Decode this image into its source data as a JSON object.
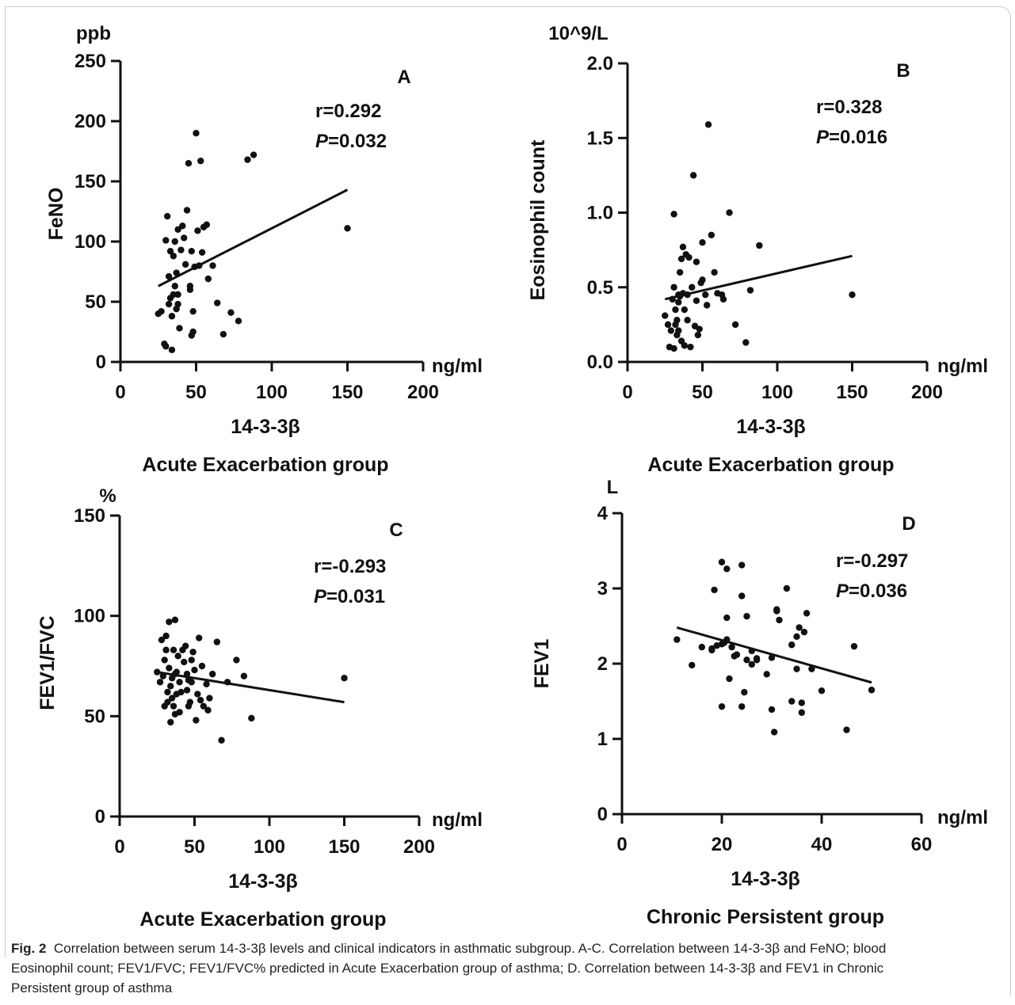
{
  "figure": {
    "caption_label": "Fig. 2",
    "caption_lines": [
      "Correlation between serum 14-3-3β levels and clinical indicators in asthmatic subgroup. A-C. Correlation between 14-3-3β and FeNO; blood",
      "Eosinophil count; FEV1/FVC; FEV1/FVC% predicted in Acute Exacerbation group of asthma; D. Correlation between 14-3-3β and FEV1 in Chronic",
      "Persistent group of asthma"
    ]
  },
  "chart_data": [
    {
      "type": "scatter",
      "panel": "A",
      "ylabel": "FeNO",
      "yunit": "ppb",
      "xunit": "ng/ml",
      "xlabel": "14-3-3β",
      "group": "Acute Exacerbation group",
      "xlim": [
        0,
        200
      ],
      "ylim": [
        0,
        250
      ],
      "xticks": [
        0,
        50,
        100,
        150,
        200
      ],
      "yticks": [
        0,
        50,
        100,
        150,
        200,
        250
      ],
      "stat_r": "r=0.292",
      "stat_p_letter": "P",
      "stat_p_value": "=0.032",
      "regression": {
        "x": [
          25,
          150
        ],
        "y": [
          63,
          143
        ]
      },
      "points": [
        [
          25,
          40
        ],
        [
          27,
          42
        ],
        [
          29,
          15
        ],
        [
          30,
          13
        ],
        [
          31,
          121
        ],
        [
          30,
          101
        ],
        [
          32,
          48
        ],
        [
          32,
          71
        ],
        [
          33,
          92
        ],
        [
          33,
          53
        ],
        [
          34,
          38
        ],
        [
          34,
          10
        ],
        [
          35,
          88
        ],
        [
          35,
          56
        ],
        [
          36,
          100
        ],
        [
          36,
          63
        ],
        [
          37,
          44
        ],
        [
          37,
          74
        ],
        [
          38,
          48
        ],
        [
          38,
          110
        ],
        [
          38,
          56
        ],
        [
          39,
          28
        ],
        [
          40,
          93
        ],
        [
          41,
          113
        ],
        [
          42,
          103
        ],
        [
          43,
          81
        ],
        [
          44,
          126
        ],
        [
          45,
          165
        ],
        [
          46,
          60
        ],
        [
          46,
          63
        ],
        [
          47,
          92
        ],
        [
          47,
          22
        ],
        [
          48,
          25
        ],
        [
          48,
          42
        ],
        [
          49,
          79
        ],
        [
          50,
          190
        ],
        [
          51,
          109
        ],
        [
          52,
          80
        ],
        [
          53,
          167
        ],
        [
          54,
          91
        ],
        [
          55,
          112
        ],
        [
          57,
          114
        ],
        [
          58,
          69
        ],
        [
          61,
          80
        ],
        [
          64,
          49
        ],
        [
          68,
          23
        ],
        [
          73,
          41
        ],
        [
          78,
          34
        ],
        [
          84,
          168
        ],
        [
          88,
          172
        ],
        [
          150,
          111
        ]
      ]
    },
    {
      "type": "scatter",
      "panel": "B",
      "ylabel": "Eosinophil count",
      "yunit": "10^9/L",
      "xunit": "ng/ml",
      "xlabel": "14-3-3β",
      "group": "Acute Exacerbation group",
      "xlim": [
        0,
        200
      ],
      "ylim": [
        0,
        2.0
      ],
      "xticks": [
        0,
        50,
        100,
        150,
        200
      ],
      "yticks": [
        0.0,
        0.5,
        1.0,
        1.5,
        2.0
      ],
      "stat_r": "r=0.328",
      "stat_p_letter": "P",
      "stat_p_value": "=0.016",
      "regression": {
        "x": [
          25,
          150
        ],
        "y": [
          0.42,
          0.71
        ]
      },
      "points": [
        [
          25,
          0.31
        ],
        [
          27,
          0.25
        ],
        [
          28,
          0.1
        ],
        [
          29,
          0.21
        ],
        [
          30,
          0.42
        ],
        [
          31,
          0.99
        ],
        [
          31,
          0.5
        ],
        [
          31,
          0.09
        ],
        [
          32,
          0.35
        ],
        [
          32,
          0.25
        ],
        [
          33,
          0.18
        ],
        [
          33,
          0.28
        ],
        [
          34,
          0.45
        ],
        [
          34,
          0.4
        ],
        [
          34,
          0.21
        ],
        [
          35,
          0.6
        ],
        [
          35,
          0.44
        ],
        [
          36,
          0.69
        ],
        [
          36,
          0.14
        ],
        [
          37,
          0.77
        ],
        [
          37,
          0.46
        ],
        [
          38,
          0.11
        ],
        [
          38,
          0.35
        ],
        [
          39,
          0.72
        ],
        [
          40,
          0.45
        ],
        [
          40,
          0.28
        ],
        [
          41,
          0.7
        ],
        [
          42,
          0.1
        ],
        [
          43,
          0.5
        ],
        [
          44,
          1.25
        ],
        [
          45,
          0.24
        ],
        [
          46,
          0.67
        ],
        [
          46,
          0.41
        ],
        [
          47,
          0.18
        ],
        [
          48,
          0.22
        ],
        [
          49,
          0.53
        ],
        [
          50,
          0.8
        ],
        [
          50,
          0.55
        ],
        [
          52,
          0.45
        ],
        [
          53,
          0.38
        ],
        [
          54,
          1.59
        ],
        [
          56,
          0.85
        ],
        [
          58,
          0.6
        ],
        [
          60,
          0.46
        ],
        [
          63,
          0.45
        ],
        [
          64,
          0.42
        ],
        [
          68,
          1.0
        ],
        [
          72,
          0.25
        ],
        [
          79,
          0.13
        ],
        [
          82,
          0.48
        ],
        [
          88,
          0.78
        ],
        [
          150,
          0.45
        ]
      ]
    },
    {
      "type": "scatter",
      "panel": "C",
      "ylabel": "FEV1/FVC",
      "yunit": "%",
      "xunit": "ng/ml",
      "xlabel": "14-3-3β",
      "group": "Acute Exacerbation group",
      "xlim": [
        0,
        200
      ],
      "ylim": [
        0,
        150
      ],
      "xticks": [
        0,
        50,
        100,
        150,
        200
      ],
      "yticks": [
        0,
        50,
        100,
        150
      ],
      "stat_r": "r=-0.293",
      "stat_p_letter": "P",
      "stat_p_value": "=0.031",
      "regression": {
        "x": [
          25,
          150
        ],
        "y": [
          72,
          57
        ]
      },
      "points": [
        [
          25,
          72
        ],
        [
          27,
          67
        ],
        [
          28,
          88
        ],
        [
          29,
          70
        ],
        [
          30,
          78
        ],
        [
          30,
          55
        ],
        [
          31,
          90
        ],
        [
          31,
          83
        ],
        [
          32,
          62
        ],
        [
          32,
          57
        ],
        [
          33,
          97
        ],
        [
          33,
          74
        ],
        [
          34,
          47
        ],
        [
          34,
          65
        ],
        [
          35,
          69
        ],
        [
          35,
          59
        ],
        [
          36,
          83
        ],
        [
          36,
          55
        ],
        [
          37,
          98
        ],
        [
          37,
          71
        ],
        [
          37,
          51
        ],
        [
          38,
          61
        ],
        [
          38,
          72
        ],
        [
          39,
          80
        ],
        [
          40,
          67
        ],
        [
          40,
          52
        ],
        [
          41,
          62
        ],
        [
          42,
          83
        ],
        [
          43,
          77
        ],
        [
          44,
          85
        ],
        [
          45,
          71
        ],
        [
          45,
          63
        ],
        [
          46,
          68
        ],
        [
          46,
          55
        ],
        [
          47,
          57
        ],
        [
          48,
          78
        ],
        [
          48,
          67
        ],
        [
          49,
          82
        ],
        [
          50,
          73
        ],
        [
          51,
          48
        ],
        [
          52,
          61
        ],
        [
          53,
          89
        ],
        [
          54,
          58
        ],
        [
          55,
          75
        ],
        [
          56,
          55
        ],
        [
          58,
          66
        ],
        [
          59,
          53
        ],
        [
          60,
          59
        ],
        [
          62,
          71
        ],
        [
          65,
          87
        ],
        [
          68,
          38
        ],
        [
          72,
          67
        ],
        [
          78,
          78
        ],
        [
          83,
          70
        ],
        [
          88,
          49
        ],
        [
          150,
          69
        ]
      ]
    },
    {
      "type": "scatter",
      "panel": "D",
      "ylabel": "FEV1",
      "yunit": "L",
      "xunit": "ng/ml",
      "xlabel": "14-3-3β",
      "group": "Chronic Persistent group",
      "xlim": [
        0,
        60
      ],
      "ylim": [
        0,
        4
      ],
      "xticks": [
        0,
        20,
        40,
        60
      ],
      "yticks": [
        0,
        1,
        2,
        3,
        4
      ],
      "stat_r": "r=-0.297",
      "stat_p_letter": "P",
      "stat_p_value": "=0.036",
      "regression": {
        "x": [
          11,
          50
        ],
        "y": [
          2.48,
          1.75
        ]
      },
      "points": [
        [
          11,
          2.32
        ],
        [
          14,
          1.98
        ],
        [
          16,
          2.22
        ],
        [
          18,
          2.2
        ],
        [
          18,
          2.18
        ],
        [
          18.5,
          2.98
        ],
        [
          19,
          2.24
        ],
        [
          20,
          2.26
        ],
        [
          20,
          1.43
        ],
        [
          20.5,
          2.28
        ],
        [
          20,
          3.35
        ],
        [
          21,
          3.26
        ],
        [
          21,
          2.61
        ],
        [
          21,
          2.32
        ],
        [
          21.5,
          1.8
        ],
        [
          22,
          2.22
        ],
        [
          22.5,
          2.1
        ],
        [
          23,
          2.12
        ],
        [
          24,
          2.9
        ],
        [
          24,
          1.43
        ],
        [
          24,
          3.31
        ],
        [
          24.5,
          1.62
        ],
        [
          25,
          2.05
        ],
        [
          25,
          2.63
        ],
        [
          26,
          2.17
        ],
        [
          26,
          1.99
        ],
        [
          27,
          2.05
        ],
        [
          27,
          2.07
        ],
        [
          29,
          1.86
        ],
        [
          30,
          1.39
        ],
        [
          30,
          2.08
        ],
        [
          30.5,
          1.09
        ],
        [
          31,
          2.7
        ],
        [
          31,
          2.72
        ],
        [
          31.5,
          2.58
        ],
        [
          33,
          3.0
        ],
        [
          34,
          1.5
        ],
        [
          34,
          2.25
        ],
        [
          35,
          2.36
        ],
        [
          35,
          1.93
        ],
        [
          35.5,
          2.48
        ],
        [
          36,
          1.48
        ],
        [
          36,
          1.35
        ],
        [
          36.5,
          2.42
        ],
        [
          37,
          2.67
        ],
        [
          38,
          1.93
        ],
        [
          40,
          1.64
        ],
        [
          45,
          1.12
        ],
        [
          46.5,
          2.23
        ],
        [
          50,
          1.65
        ]
      ]
    }
  ]
}
